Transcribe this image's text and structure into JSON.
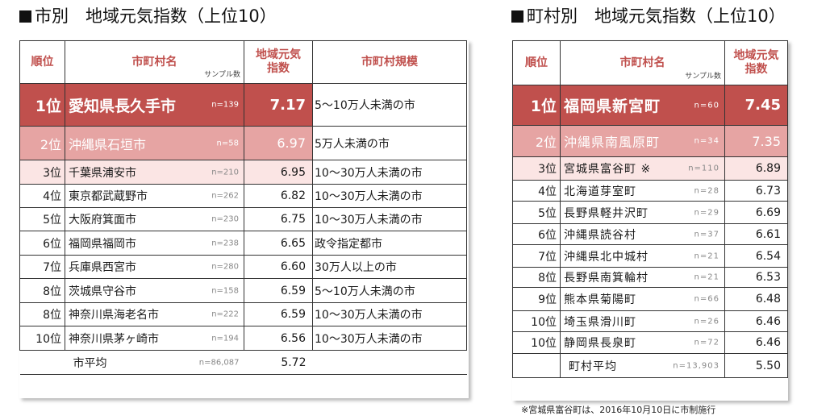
{
  "left": {
    "title": "市別　地域元気指数（上位10）",
    "headers": {
      "rank": "順位",
      "name": "市町村名",
      "sample": "サンプル数",
      "index_line1": "地域元気",
      "index_line2": "指数",
      "scale": "市町村規模"
    },
    "rows": [
      {
        "rank": "1位",
        "name": "愛知県長久手市",
        "n": "n=139",
        "value": "7.17",
        "scale": "5～10万人未満の市"
      },
      {
        "rank": "2位",
        "name": "沖縄県石垣市",
        "n": "n=58",
        "value": "6.97",
        "scale": "5万人未満の市"
      },
      {
        "rank": "3位",
        "name": "千葉県浦安市",
        "n": "n=210",
        "value": "6.95",
        "scale": "10～30万人未満の市"
      },
      {
        "rank": "4位",
        "name": "東京都武蔵野市",
        "n": "n=262",
        "value": "6.82",
        "scale": "10～30万人未満の市"
      },
      {
        "rank": "5位",
        "name": "大阪府箕面市",
        "n": "n=230",
        "value": "6.75",
        "scale": "10～30万人未満の市"
      },
      {
        "rank": "6位",
        "name": "福岡県福岡市",
        "n": "n=238",
        "value": "6.65",
        "scale": "政令指定都市"
      },
      {
        "rank": "7位",
        "name": "兵庫県西宮市",
        "n": "n=280",
        "value": "6.60",
        "scale": "30万人以上の市"
      },
      {
        "rank": "8位",
        "name": "茨城県守谷市",
        "n": "n=158",
        "value": "6.59",
        "scale": "5～10万人未満の市"
      },
      {
        "rank": "8位",
        "name": "神奈川県海老名市",
        "n": "n=222",
        "value": "6.59",
        "scale": "10～30万人未満の市"
      },
      {
        "rank": "10位",
        "name": "神奈川県茅ヶ崎市",
        "n": "n=194",
        "value": "6.56",
        "scale": "10～30万人未満の市"
      }
    ],
    "average": {
      "label": "市平均",
      "n": "n=86,087",
      "value": "5.72"
    }
  },
  "right": {
    "title": "町村別　地域元気指数（上位10）",
    "headers": {
      "rank": "順位",
      "name": "市町村名",
      "sample": "サンプル数",
      "index_line1": "地域元気",
      "index_line2": "指数"
    },
    "rows": [
      {
        "rank": "1位",
        "name": "福岡県新宮町",
        "n": "n=60",
        "value": "7.45"
      },
      {
        "rank": "2位",
        "name": "沖縄県南風原町",
        "n": "n=34",
        "value": "7.35"
      },
      {
        "rank": "3位",
        "name": "宮城県富谷町 ※",
        "n": "n=110",
        "value": "6.89"
      },
      {
        "rank": "4位",
        "name": "北海道芽室町",
        "n": "n=28",
        "value": "6.73"
      },
      {
        "rank": "5位",
        "name": "長野県軽井沢町",
        "n": "n=29",
        "value": "6.69"
      },
      {
        "rank": "6位",
        "name": "沖縄県読谷村",
        "n": "n=37",
        "value": "6.61"
      },
      {
        "rank": "7位",
        "name": "沖縄県北中城村",
        "n": "n=21",
        "value": "6.54"
      },
      {
        "rank": "8位",
        "name": "長野県南箕輪村",
        "n": "n=21",
        "value": "6.53"
      },
      {
        "rank": "9位",
        "name": "熊本県菊陽町",
        "n": "n=66",
        "value": "6.48"
      },
      {
        "rank": "10位",
        "name": "埼玉県滑川町",
        "n": "n=26",
        "value": "6.46"
      },
      {
        "rank": "10位",
        "name": "静岡県長泉町",
        "n": "n=72",
        "value": "6.46"
      }
    ],
    "average": {
      "label": "町村平均",
      "n": "n=13,903",
      "value": "5.50"
    },
    "footnote": "※宮城県富谷町は、2016年10月10日に市制施行"
  },
  "colors": {
    "first": "#c0504d",
    "second": "#e6a4a3",
    "third": "#fbe5e4",
    "header_text": "#c0504d"
  }
}
